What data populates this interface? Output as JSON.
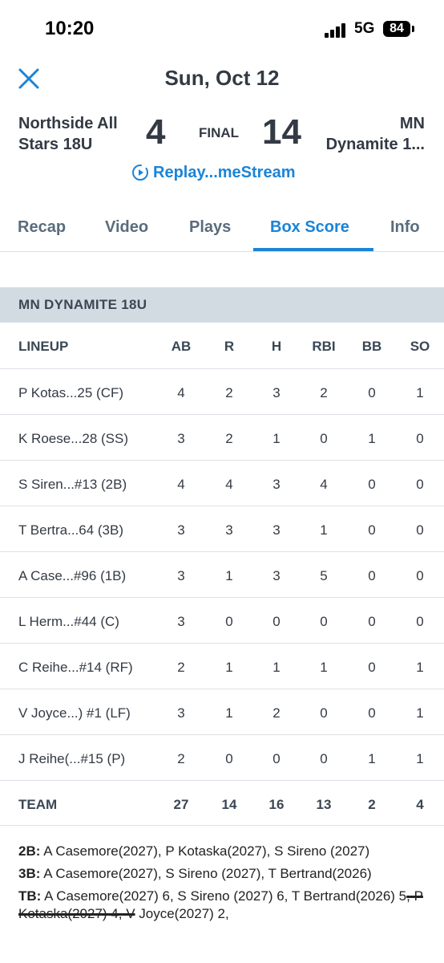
{
  "status_bar": {
    "time": "10:20",
    "network": "5G",
    "battery": "84"
  },
  "header": {
    "title": "Sun, Oct 12"
  },
  "game": {
    "away_team": "Northside All Stars 18U",
    "away_score": "4",
    "status": "FINAL",
    "home_score": "14",
    "home_team_line1": "MN",
    "home_team_line2": "Dynamite 1...",
    "replay_label": "Replay...meStream"
  },
  "tabs": [
    {
      "label": "Recap"
    },
    {
      "label": "Video"
    },
    {
      "label": "Plays"
    },
    {
      "label": "Box Score",
      "active": true
    },
    {
      "label": "Info"
    }
  ],
  "box_score": {
    "team_title": "MN DYNAMITE 18U",
    "columns": [
      "LINEUP",
      "AB",
      "R",
      "H",
      "RBI",
      "BB",
      "SO"
    ],
    "players": [
      {
        "name": "P Kotas...25 (CF)",
        "stats": [
          "4",
          "2",
          "3",
          "2",
          "0",
          "1"
        ]
      },
      {
        "name": "K Roese...28 (SS)",
        "stats": [
          "3",
          "2",
          "1",
          "0",
          "1",
          "0"
        ]
      },
      {
        "name": "S Siren...#13 (2B)",
        "stats": [
          "4",
          "4",
          "3",
          "4",
          "0",
          "0"
        ]
      },
      {
        "name": "T Bertra...64 (3B)",
        "stats": [
          "3",
          "3",
          "3",
          "1",
          "0",
          "0"
        ]
      },
      {
        "name": "A Case...#96 (1B)",
        "stats": [
          "3",
          "1",
          "3",
          "5",
          "0",
          "0"
        ]
      },
      {
        "name": "L Herm...#44 (C)",
        "stats": [
          "3",
          "0",
          "0",
          "0",
          "0",
          "0"
        ]
      },
      {
        "name": "C Reihe...#14 (RF)",
        "stats": [
          "2",
          "1",
          "1",
          "1",
          "0",
          "1"
        ]
      },
      {
        "name": "V Joyce...) #1 (LF)",
        "stats": [
          "3",
          "1",
          "2",
          "0",
          "0",
          "1"
        ]
      },
      {
        "name": "J Reihe(...#15 (P)",
        "stats": [
          "2",
          "0",
          "0",
          "0",
          "1",
          "1"
        ]
      }
    ],
    "totals": {
      "label": "TEAM",
      "stats": [
        "27",
        "14",
        "16",
        "13",
        "2",
        "4"
      ]
    }
  },
  "notes": {
    "doubles_label": "2B:",
    "doubles_text": "A Casemore(2027), P Kotaska(2027), S Sireno (2027)",
    "triples_label": "3B:",
    "triples_text": "A Casemore(2027), S Sireno (2027), T Bertrand(2026)",
    "tb_label": "TB:",
    "tb_text_a": "A Casemore(2027) 6, S Sireno (2027) 6, T Bertrand(2026) 5",
    "tb_text_struck": ", P Kotaska(2027) 4, V",
    "tb_text_b": " Joyce(2027) 2,"
  },
  "colors": {
    "accent": "#1a84d8",
    "section_bg": "#d3dbe2",
    "text": "#333a44"
  }
}
